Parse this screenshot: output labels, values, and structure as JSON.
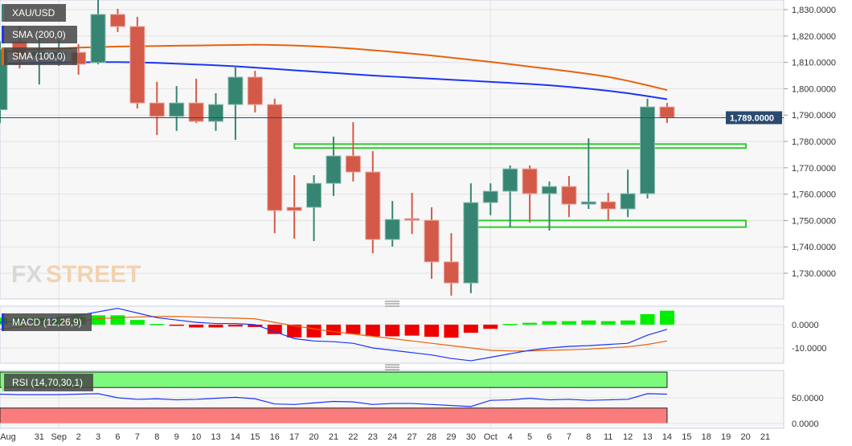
{
  "chart_data": [
    {
      "type": "candlestick",
      "symbol": "XAU/USD",
      "indicators": [
        {
          "name": "SMA (200,0)",
          "color": "#e8620c"
        },
        {
          "name": "SMA (100,0)",
          "color": "#1c35f5"
        }
      ],
      "y_ticks": [
        "1,730.0000",
        "1,740.0000",
        "1,750.0000",
        "1,760.0000",
        "1,770.0000",
        "1,780.0000",
        "1,790.0000",
        "1,800.0000",
        "1,810.0000",
        "1,820.0000",
        "1,830.0000"
      ],
      "ylim": [
        1718,
        1834
      ],
      "last_price": 1789.0,
      "last_price_label": "1,789.0000",
      "x_labels": [
        "Aug",
        "31",
        "Sep",
        "2",
        "3",
        "6",
        "7",
        "8",
        "9",
        "10",
        "13",
        "14",
        "15",
        "16",
        "17",
        "20",
        "21",
        "22",
        "23",
        "24",
        "27",
        "28",
        "29",
        "30",
        "Oct",
        "4",
        "5",
        "6",
        "7",
        "8",
        "11",
        "12",
        "13",
        "14",
        "15",
        "18",
        "19",
        "20",
        "21"
      ],
      "ohlc": [
        [
          1792,
          1815,
          1818,
          1787
        ],
        [
          1817.8,
          1812.3,
          1823.6,
          1807.7
        ],
        [
          1812.3,
          1814.1,
          1819.3,
          1801.6
        ],
        [
          1812.3,
          1813.8,
          1818.4,
          1808.7
        ],
        [
          1813.8,
          1809.3,
          1816.9,
          1805.3
        ],
        [
          1809.9,
          1828.2,
          1833.7,
          1809.3
        ],
        [
          1828.2,
          1823.6,
          1830.3,
          1821.5
        ],
        [
          1823.6,
          1794.6,
          1827.3,
          1792.5
        ],
        [
          1794.6,
          1789.5,
          1802.6,
          1782.4
        ],
        [
          1789.5,
          1794.6,
          1801.0,
          1784.0
        ],
        [
          1794.6,
          1787.6,
          1803.8,
          1787.0
        ],
        [
          1787.6,
          1794.0,
          1798.3,
          1784.0
        ],
        [
          1794.0,
          1804.4,
          1808.7,
          1780.6
        ],
        [
          1804.4,
          1794.0,
          1806.8,
          1791.0
        ],
        [
          1794.0,
          1753.8,
          1796.2,
          1745.2
        ],
        [
          1755.0,
          1753.8,
          1767.2,
          1743.1
        ],
        [
          1755.0,
          1764.1,
          1767.2,
          1742.2
        ],
        [
          1764.1,
          1774.5,
          1781.8,
          1759.3
        ],
        [
          1774.5,
          1768.4,
          1787.3,
          1764.8
        ],
        [
          1768.4,
          1742.8,
          1776.3,
          1737.6
        ],
        [
          1742.8,
          1750.4,
          1757.4,
          1740.1
        ],
        [
          1750.7,
          1750.1,
          1760.5,
          1744.9
        ],
        [
          1750.1,
          1734.3,
          1755.0,
          1727.9
        ],
        [
          1734.3,
          1726.3,
          1745.2,
          1721.5
        ],
        [
          1726.3,
          1756.8,
          1764.1,
          1722.4
        ],
        [
          1756.8,
          1761.1,
          1764.1,
          1752.0
        ],
        [
          1761.1,
          1769.6,
          1770.9,
          1747.4
        ],
        [
          1769.6,
          1760.2,
          1770.9,
          1749.2
        ],
        [
          1760.2,
          1762.9,
          1764.8,
          1746.2
        ],
        [
          1762.9,
          1756.2,
          1766.9,
          1751.3
        ],
        [
          1756.2,
          1757.1,
          1781.2,
          1754.4
        ],
        [
          1757.1,
          1754.4,
          1760.5,
          1750.1
        ],
        [
          1754.4,
          1760.2,
          1769.3,
          1751.3
        ],
        [
          1760.2,
          1793.1,
          1796.2,
          1758.4
        ],
        [
          1793.1,
          1789.1,
          1794.6,
          1787.0
        ]
      ],
      "sma200": [
        1814,
        1814.5,
        1815,
        1815.3,
        1815.6,
        1815.8,
        1816,
        1816.1,
        1816.2,
        1816.3,
        1816.4,
        1816.5,
        1816.6,
        1816.7,
        1816.6,
        1816.4,
        1816.1,
        1815.7,
        1815.2,
        1814.6,
        1814,
        1813.3,
        1812.6,
        1811.8,
        1811,
        1810.2,
        1809.3,
        1808.4,
        1807.5,
        1806.6,
        1805.6,
        1804.5,
        1803,
        1801.3,
        1799.5
      ],
      "sma100": [
        1809.5,
        1809.7,
        1809.8,
        1809.9,
        1810,
        1810.1,
        1810.1,
        1810,
        1809.8,
        1809.5,
        1809.2,
        1808.9,
        1808.5,
        1808,
        1807.5,
        1807,
        1806.5,
        1806,
        1805.5,
        1805,
        1804.6,
        1804.2,
        1803.8,
        1803.4,
        1803,
        1802.6,
        1802.2,
        1801.8,
        1801.3,
        1800.7,
        1800,
        1799.2,
        1798.3,
        1797.2,
        1796
      ],
      "zones": [
        {
          "low": 1777.5,
          "high": 1779,
          "from_index": 15,
          "to_date": "20"
        },
        {
          "low": 1747.5,
          "high": 1750,
          "from_index": 24,
          "to_date": "20"
        }
      ]
    },
    {
      "type": "macd",
      "name": "MACD (12,26,9)",
      "y_ticks": [
        "0.0000",
        "-10.0000"
      ],
      "ylim": [
        -18,
        8
      ],
      "histogram": [
        3,
        3,
        3,
        3,
        3.5,
        4,
        4,
        2,
        0.3,
        -0.5,
        -1.2,
        -1.2,
        -0.8,
        -1,
        -4,
        -5.5,
        -5.5,
        -4.5,
        -4,
        -5,
        -5,
        -4.7,
        -5.2,
        -5.6,
        -3.5,
        -1.8,
        0.3,
        0.8,
        1.5,
        1.5,
        1.8,
        1.5,
        1.8,
        4.5,
        6
      ],
      "macd": [
        1,
        1.5,
        2,
        3,
        4,
        5.5,
        7,
        5,
        3,
        2,
        1,
        0.5,
        0.5,
        0,
        -3,
        -6,
        -7,
        -7.3,
        -8,
        -10,
        -11,
        -12,
        -13,
        -14.5,
        -15.5,
        -14,
        -12.5,
        -11,
        -10,
        -9.3,
        -9,
        -8.5,
        -8,
        -4.5,
        -2
      ],
      "signal": [
        -2,
        -1,
        0,
        0.5,
        1.5,
        2.5,
        3,
        3.3,
        3.5,
        3.5,
        3.3,
        3,
        2.8,
        2.5,
        1,
        -0.5,
        -1.8,
        -3,
        -4,
        -5,
        -6,
        -7,
        -8,
        -9,
        -10,
        -11,
        -11.3,
        -11.3,
        -11,
        -10.8,
        -10.5,
        -10,
        -9.5,
        -8.5,
        -7
      ],
      "colors": {
        "positive": "#00ee00",
        "negative": "#ee0000",
        "macd": "#1c35f5",
        "signal": "#e8620c"
      }
    },
    {
      "type": "rsi",
      "name": "RSI (14,70,30,1)",
      "y_ticks": [
        "50.0000",
        "0.0000"
      ],
      "ylim": [
        0,
        100
      ],
      "overbought": 70,
      "oversold": 30,
      "values": [
        57,
        56,
        56,
        56,
        57,
        58,
        50,
        47,
        48,
        46,
        47,
        49,
        51,
        48,
        38,
        37,
        40,
        43,
        42,
        37,
        39,
        39,
        37,
        35,
        33,
        45,
        46,
        49,
        46,
        47,
        45,
        46,
        47,
        58,
        57
      ],
      "colors": {
        "overbought_zone": "#7dfa7d",
        "oversold_zone": "#fa7d7d",
        "line": "#1c35f5"
      }
    }
  ]
}
